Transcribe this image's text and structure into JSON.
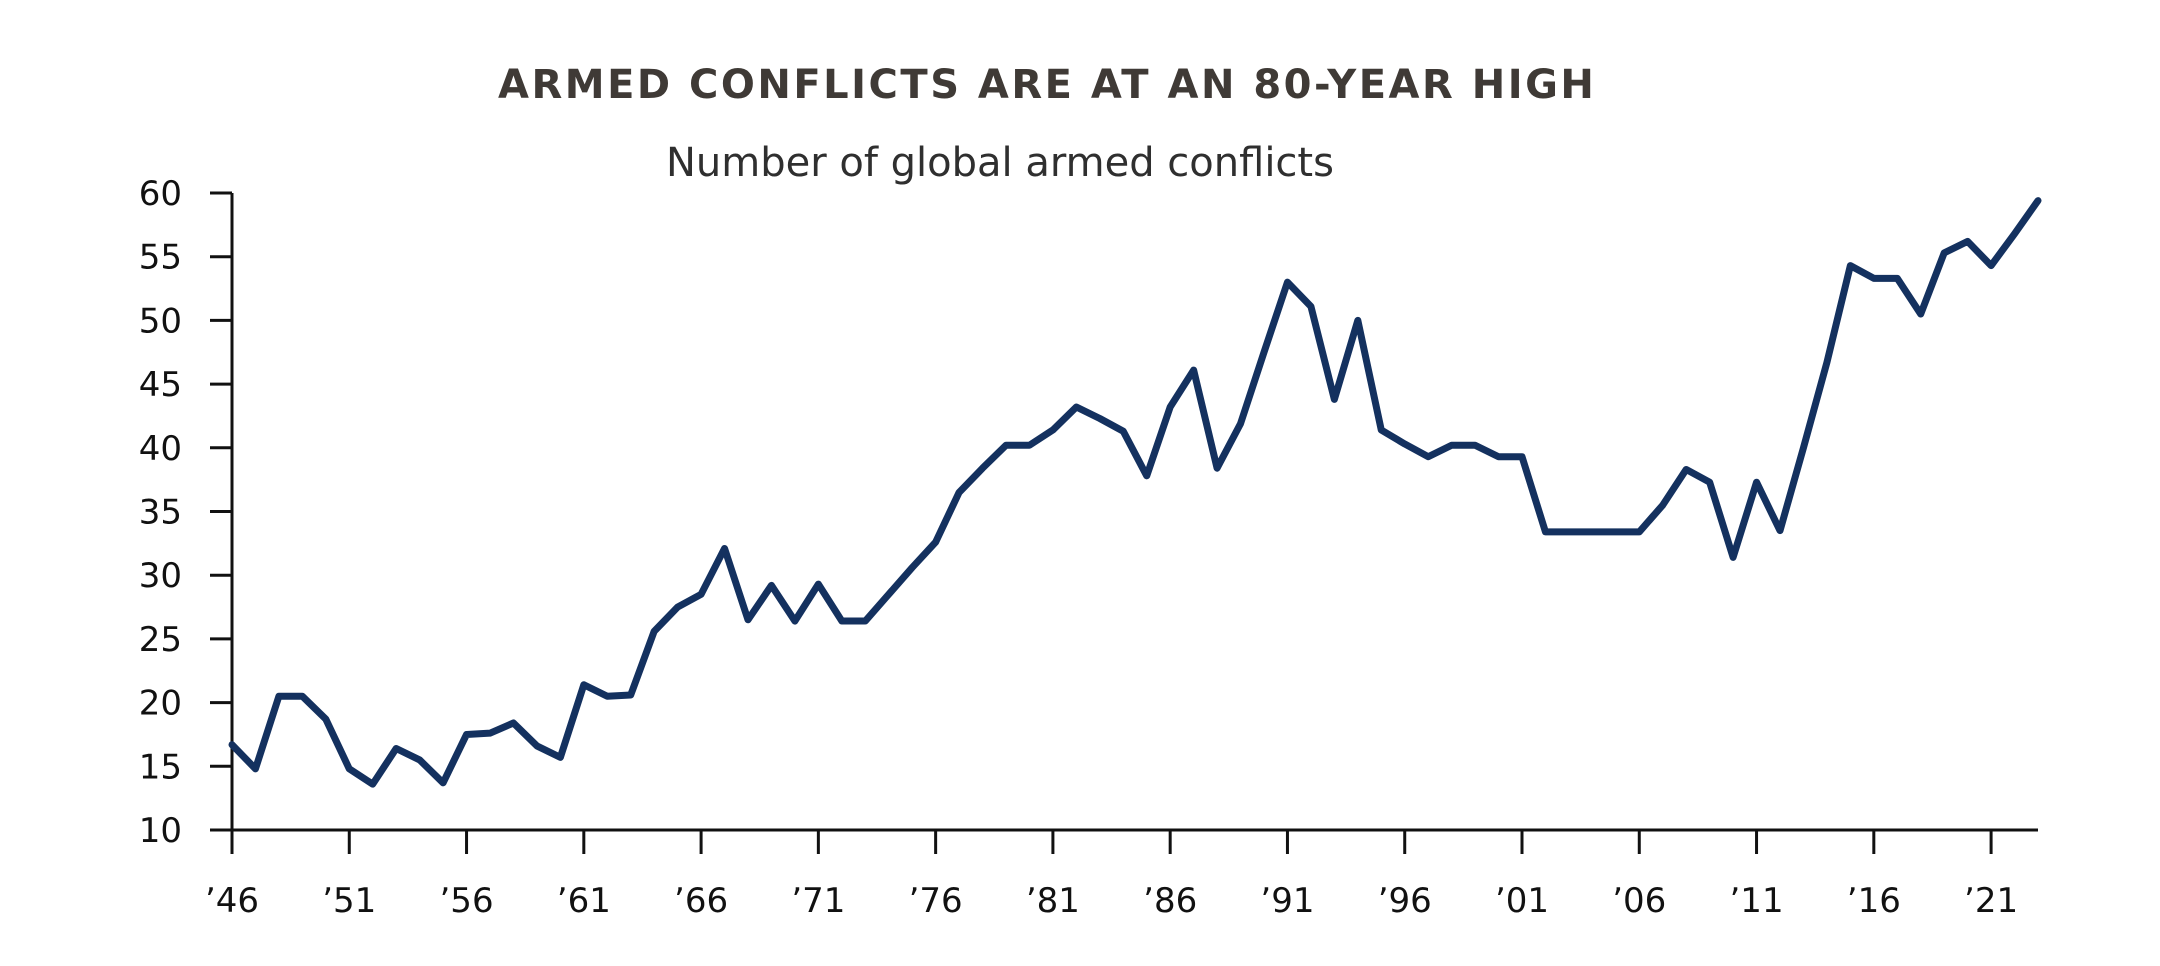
{
  "chart_data": {
    "type": "line",
    "title": "ARMED CONFLICTS ARE AT AN 80-YEAR HIGH",
    "subtitle": "Number of global armed conflicts",
    "xlabel": "",
    "ylabel": "",
    "xlim": [
      1946,
      2023
    ],
    "ylim": [
      10,
      60
    ],
    "y_ticks": [
      10,
      15,
      20,
      25,
      30,
      35,
      40,
      45,
      50,
      55,
      60
    ],
    "x_ticks": [
      1946,
      1951,
      1956,
      1961,
      1966,
      1971,
      1976,
      1981,
      1986,
      1991,
      1996,
      2001,
      2006,
      2011,
      2016,
      2021
    ],
    "x_tick_labels": [
      "’46",
      "’51",
      "’56",
      "’61",
      "’66",
      "’71",
      "’76",
      "’81",
      "’86",
      "’91",
      "’96",
      "’01",
      "’06",
      "’11",
      "’16",
      "’21"
    ],
    "grid": false,
    "colors": {
      "series": "#14315f",
      "axis": "#111111",
      "title": "#3f3a36"
    },
    "series": [
      {
        "x": [
          1946,
          1947,
          1948,
          1949,
          1950,
          1951,
          1952,
          1953,
          1954,
          1955,
          1956,
          1957,
          1958,
          1959,
          1960,
          1961,
          1962,
          1963,
          1964,
          1965,
          1966,
          1967,
          1968,
          1969,
          1970,
          1971,
          1972,
          1973,
          1974,
          1975,
          1976,
          1977,
          1978,
          1979,
          1980,
          1981,
          1982,
          1983,
          1984,
          1985,
          1986,
          1987,
          1988,
          1989,
          1990,
          1991,
          1992,
          1993,
          1994,
          1995,
          1996,
          1997,
          1998,
          1999,
          2000,
          2001,
          2002,
          2003,
          2004,
          2005,
          2006,
          2007,
          2008,
          2009,
          2010,
          2011,
          2012,
          2013,
          2014,
          2015,
          2016,
          2017,
          2018,
          2019,
          2020,
          2021,
          2022,
          2023
        ],
        "values": [
          16.7,
          14.8,
          20.5,
          20.5,
          18.7,
          14.8,
          13.6,
          16.4,
          15.5,
          13.7,
          17.5,
          17.6,
          18.4,
          16.6,
          15.7,
          21.4,
          20.5,
          20.6,
          25.6,
          27.5,
          28.5,
          32.1,
          26.5,
          29.2,
          26.4,
          29.3,
          26.4,
          26.4,
          28.5,
          30.6,
          32.6,
          36.5,
          38.4,
          40.2,
          40.2,
          41.4,
          43.2,
          42.3,
          41.3,
          37.8,
          43.2,
          46.1,
          38.4,
          41.9,
          47.5,
          53.0,
          51.1,
          43.8,
          50.0,
          41.4,
          40.3,
          39.3,
          40.2,
          40.2,
          39.3,
          39.3,
          33.4,
          33.4,
          33.4,
          33.4,
          33.4,
          35.5,
          38.3,
          37.3,
          31.4,
          37.3,
          33.5,
          40.0,
          46.7,
          54.3,
          53.3,
          53.3,
          50.5,
          55.3,
          56.2,
          54.3,
          56.8,
          59.4
        ]
      }
    ]
  }
}
